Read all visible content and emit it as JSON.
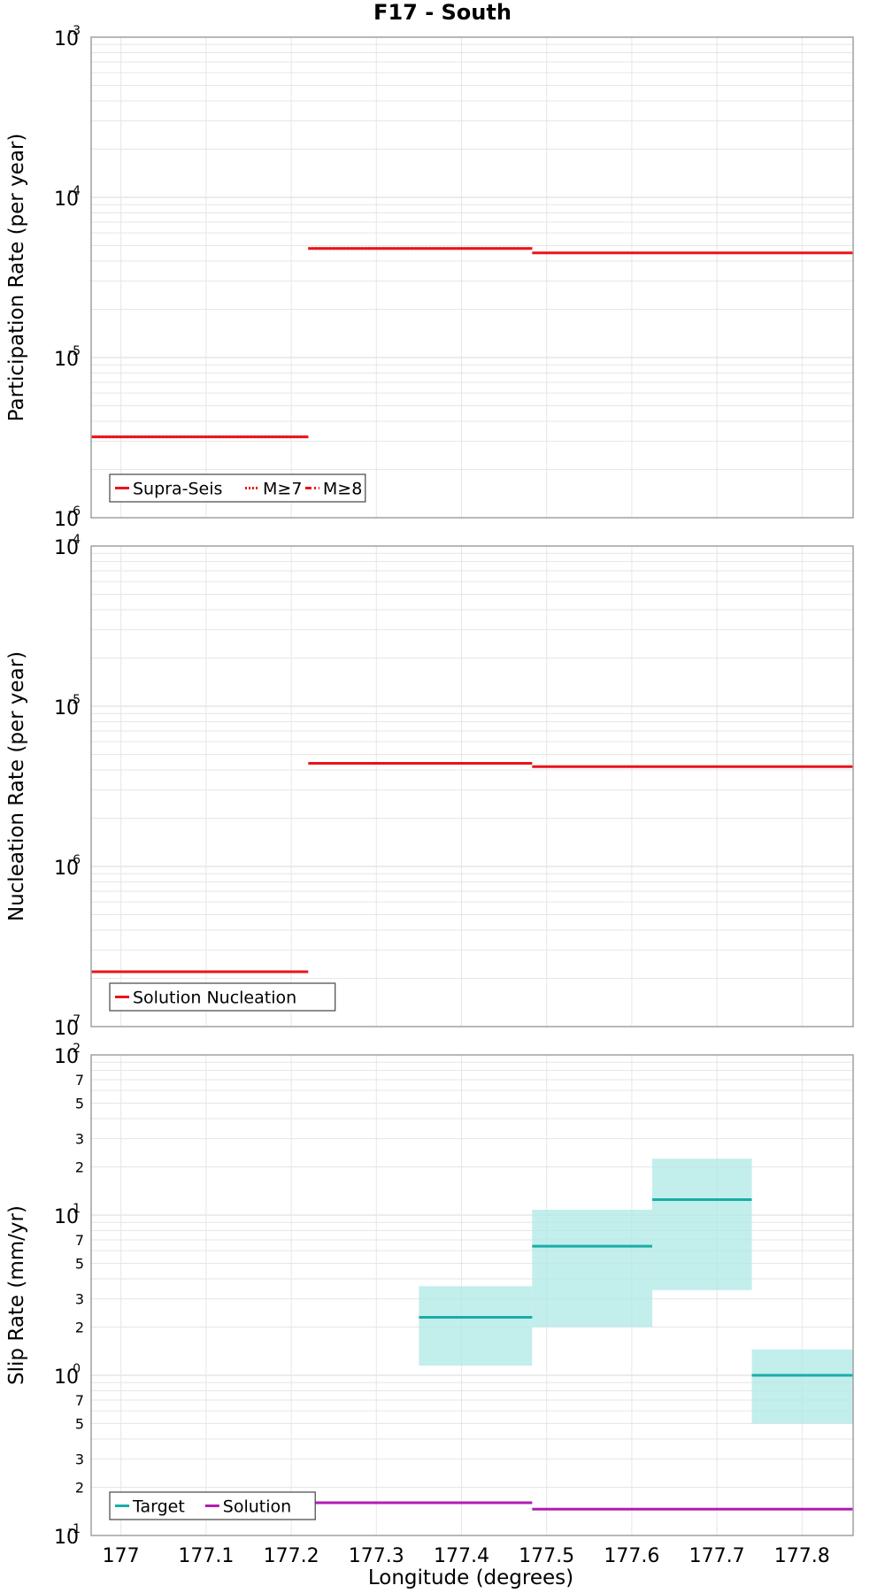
{
  "title": "F17 - South",
  "chart_data": [
    {
      "type": "line",
      "ylabel": "Participation Rate (per year)",
      "xlabel": "",
      "yscale": "log",
      "ylim": [
        1e-06,
        0.001
      ],
      "xlim": [
        176.965,
        177.86
      ],
      "decade_labels": [
        {
          "base": "10",
          "exp": "-6"
        },
        {
          "base": "10",
          "exp": "-5"
        },
        {
          "base": "10",
          "exp": "-4"
        },
        {
          "base": "10",
          "exp": "-3"
        }
      ],
      "minor_labels": [],
      "legend": [
        {
          "name": "Supra-Seis",
          "color": "#e8141b",
          "dash": "solid"
        },
        {
          "name": "M≥7",
          "color": "#e8141b",
          "dash": "dotted"
        },
        {
          "name": "M≥8",
          "color": "#e8141b",
          "dash": "dashdot"
        }
      ],
      "series": [
        {
          "name": "Supra-Seis",
          "color": "#e8141b",
          "style": "step",
          "segments": [
            {
              "x0": 176.965,
              "x1": 177.22,
              "y": 3.2e-06
            },
            {
              "x0": 177.22,
              "x1": 177.483,
              "y": 4.8e-05
            },
            {
              "x0": 177.483,
              "x1": 177.86,
              "y": 4.5e-05
            }
          ]
        },
        {
          "name": "M≥7",
          "color": "#e8141b",
          "style": "step-dotted",
          "segments": [
            {
              "x0": 176.965,
              "x1": 177.22,
              "y": 3.2e-06
            },
            {
              "x0": 177.22,
              "x1": 177.483,
              "y": 4.8e-05
            }
          ]
        }
      ]
    },
    {
      "type": "line",
      "ylabel": "Nucleation Rate (per year)",
      "xlabel": "",
      "yscale": "log",
      "ylim": [
        1e-07,
        0.0001
      ],
      "xlim": [
        176.965,
        177.86
      ],
      "decade_labels": [
        {
          "base": "10",
          "exp": "-7"
        },
        {
          "base": "10",
          "exp": "-6"
        },
        {
          "base": "10",
          "exp": "-5"
        },
        {
          "base": "10",
          "exp": "-4"
        }
      ],
      "minor_labels": [],
      "legend": [
        {
          "name": "Solution Nucleation",
          "color": "#e8141b",
          "dash": "solid"
        }
      ],
      "series": [
        {
          "name": "Solution Nucleation",
          "color": "#e8141b",
          "style": "step",
          "segments": [
            {
              "x0": 176.965,
              "x1": 177.22,
              "y": 2.2e-07
            },
            {
              "x0": 177.22,
              "x1": 177.483,
              "y": 4.4e-06
            },
            {
              "x0": 177.483,
              "x1": 177.86,
              "y": 4.2e-06
            }
          ]
        }
      ]
    },
    {
      "type": "line",
      "ylabel": "Slip Rate (mm/yr)",
      "xlabel": "Longitude (degrees)",
      "yscale": "log",
      "ylim": [
        0.1,
        100
      ],
      "xlim": [
        176.965,
        177.86
      ],
      "decade_labels": [
        {
          "base": "10",
          "exp": "-1"
        },
        {
          "base": "10",
          "exp": "0"
        },
        {
          "base": "10",
          "exp": "1"
        },
        {
          "base": "10",
          "exp": "2"
        }
      ],
      "minor_labels": [
        {
          "value": 0.2,
          "label": "2"
        },
        {
          "value": 0.3,
          "label": "3"
        },
        {
          "value": 0.5,
          "label": "5"
        },
        {
          "value": 0.7,
          "label": "7"
        },
        {
          "value": 2,
          "label": "2"
        },
        {
          "value": 3,
          "label": "3"
        },
        {
          "value": 5,
          "label": "5"
        },
        {
          "value": 7,
          "label": "7"
        },
        {
          "value": 20,
          "label": "2"
        },
        {
          "value": 30,
          "label": "3"
        },
        {
          "value": 50,
          "label": "5"
        },
        {
          "value": 70,
          "label": "7"
        }
      ],
      "legend": [
        {
          "name": "Target",
          "color": "#1aada6",
          "dash": "solid"
        },
        {
          "name": "Solution",
          "color": "#b31bb3",
          "dash": "solid"
        }
      ],
      "bands": [
        {
          "x0": 177.35,
          "x1": 177.483,
          "low": 1.15,
          "high": 3.6
        },
        {
          "x0": 177.483,
          "x1": 177.624,
          "low": 2.0,
          "high": 10.8
        },
        {
          "x0": 177.624,
          "x1": 177.741,
          "low": 3.4,
          "high": 22.5
        },
        {
          "x0": 177.741,
          "x1": 177.86,
          "low": 0.5,
          "high": 1.45
        }
      ],
      "series": [
        {
          "name": "Target",
          "color": "#1aada6",
          "style": "step",
          "segments": [
            {
              "x0": 177.35,
              "x1": 177.483,
              "y": 2.3
            },
            {
              "x0": 177.483,
              "x1": 177.624,
              "y": 6.4
            },
            {
              "x0": 177.624,
              "x1": 177.741,
              "y": 12.5
            },
            {
              "x0": 177.741,
              "x1": 177.86,
              "y": 1.0
            }
          ]
        },
        {
          "name": "Solution",
          "color": "#b31bb3",
          "style": "step",
          "segments": [
            {
              "x0": 177.22,
              "x1": 177.483,
              "y": 0.16
            },
            {
              "x0": 177.483,
              "x1": 177.86,
              "y": 0.146
            }
          ]
        }
      ]
    }
  ],
  "xticks": [
    "177",
    "177.1",
    "177.2",
    "177.3",
    "177.4",
    "177.5",
    "177.6",
    "177.7",
    "177.8"
  ],
  "xtick_values": [
    177.0,
    177.1,
    177.2,
    177.3,
    177.4,
    177.5,
    177.6,
    177.7,
    177.8
  ],
  "colors": {
    "grid": "#e6e6e6",
    "frame": "#a0a0a0",
    "band": "#aee8e5"
  }
}
